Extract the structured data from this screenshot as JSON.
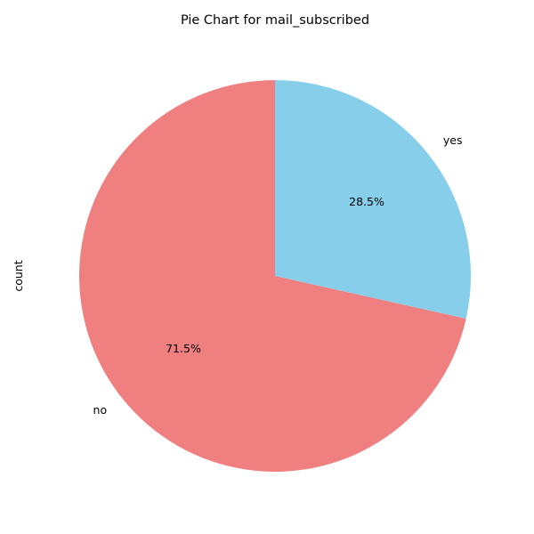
{
  "chart_data": {
    "type": "pie",
    "title": "Pie Chart for mail_subscribed",
    "ylabel": "count",
    "categories": [
      "no",
      "yes"
    ],
    "values": [
      71.5,
      28.5
    ],
    "value_labels": [
      "71.5%",
      "28.5%"
    ],
    "colors": [
      "#f08080",
      "#87ceeb"
    ],
    "start_angle_deg": 90,
    "direction": "counterclockwise",
    "legend": "none"
  }
}
